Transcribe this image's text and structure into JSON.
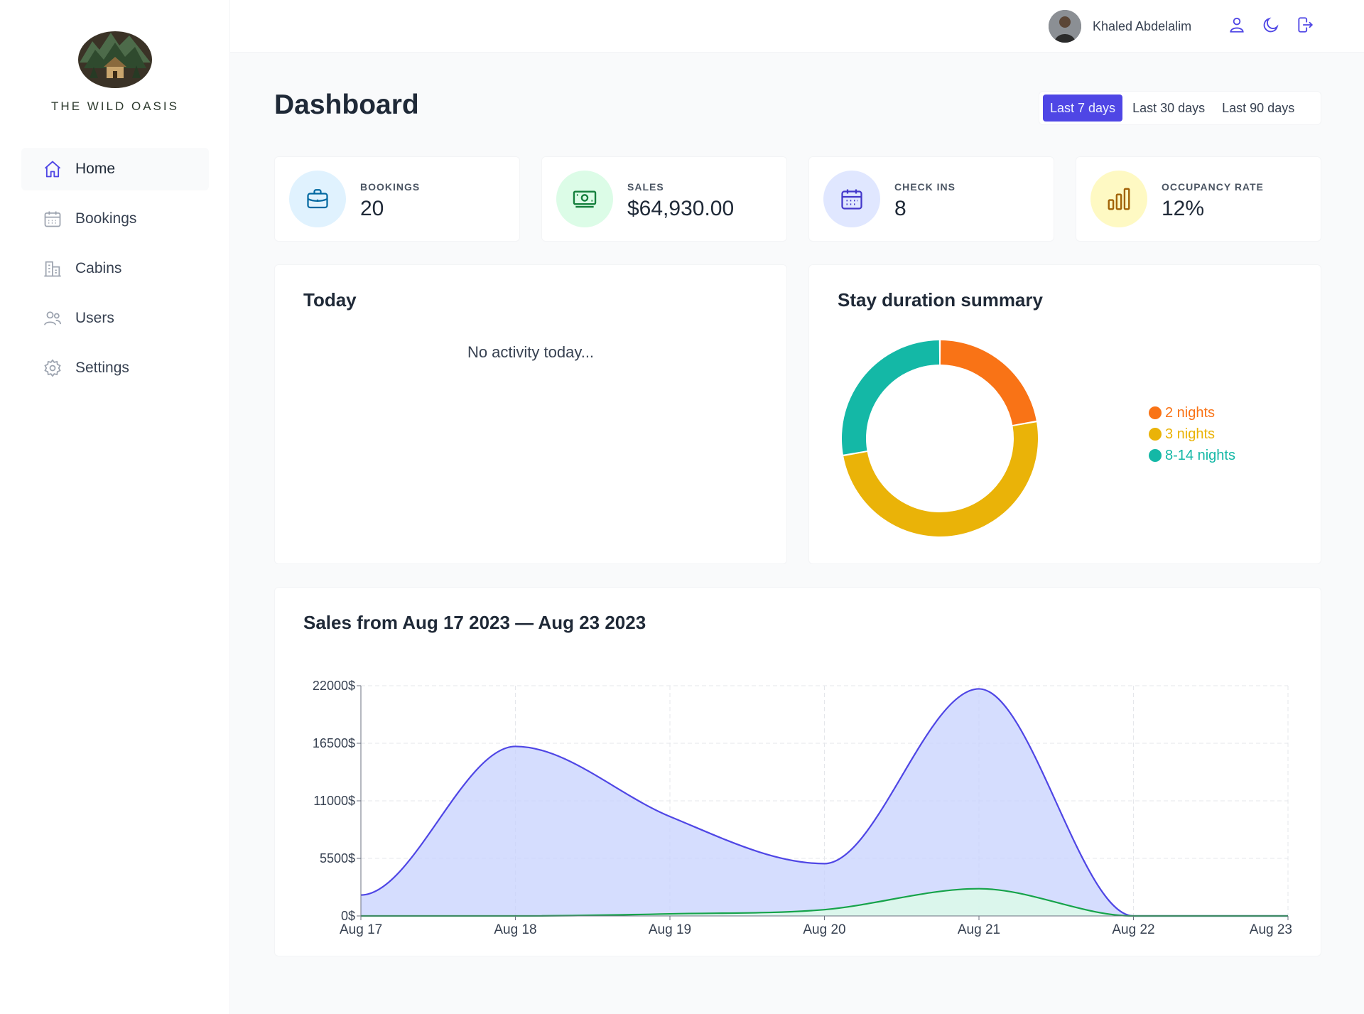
{
  "brand": {
    "name": "THE WILD OASIS"
  },
  "sidebar": {
    "items": [
      {
        "label": "Home",
        "icon": "home-icon",
        "active": true
      },
      {
        "label": "Bookings",
        "icon": "calendar-icon",
        "active": false
      },
      {
        "label": "Cabins",
        "icon": "building-icon",
        "active": false
      },
      {
        "label": "Users",
        "icon": "users-icon",
        "active": false
      },
      {
        "label": "Settings",
        "icon": "gear-icon",
        "active": false
      }
    ]
  },
  "header": {
    "user_name": "Khaled Abdelalim",
    "icons": [
      "user-icon",
      "moon-icon",
      "logout-icon"
    ]
  },
  "page": {
    "title": "Dashboard"
  },
  "filter": {
    "options": [
      "Last 7 days",
      "Last 30 days",
      "Last 90 days"
    ],
    "selected": "Last 7 days"
  },
  "stats": [
    {
      "label": "BOOKINGS",
      "value": "20",
      "icon": "briefcase-icon",
      "color": "#0369a1",
      "bg": "#e0f2fe"
    },
    {
      "label": "SALES",
      "value": "$64,930.00",
      "icon": "banknotes-icon",
      "color": "#15803d",
      "bg": "#dcfce7"
    },
    {
      "label": "CHECK INS",
      "value": "8",
      "icon": "calendar-days-icon",
      "color": "#4338ca",
      "bg": "#e0e7ff"
    },
    {
      "label": "OCCUPANCY RATE",
      "value": "12%",
      "icon": "chart-bar-icon",
      "color": "#a16207",
      "bg": "#fef9c3"
    }
  ],
  "today": {
    "title": "Today",
    "empty_text": "No activity today..."
  },
  "duration": {
    "title": "Stay duration summary",
    "colors": {
      "2 nights": "#f97316",
      "3 nights": "#eab308",
      "8-14 nights": "#14b8a6"
    }
  },
  "sales_chart": {
    "title": "Sales from Aug 17 2023 — Aug 23 2023"
  },
  "chart_data": [
    {
      "type": "pie",
      "labels": [
        "2 nights",
        "3 nights",
        "8-14 nights"
      ],
      "values": [
        4,
        9,
        5
      ],
      "legend_position": "right"
    },
    {
      "type": "area",
      "categories": [
        "Aug 17",
        "Aug 18",
        "Aug 19",
        "Aug 20",
        "Aug 21",
        "Aug 22",
        "Aug 23"
      ],
      "series": [
        {
          "values": [
            2000,
            16200,
            9500,
            5000,
            21700,
            0,
            0
          ],
          "color": "#4f46e5",
          "fill": "#c7d2fe"
        },
        {
          "values": [
            0,
            0,
            200,
            600,
            2600,
            0,
            0
          ],
          "color": "#16a34a",
          "fill": "#dcfce7"
        }
      ],
      "yticks": [
        "0$",
        "5500$",
        "11000$",
        "16500$",
        "22000$"
      ],
      "ylim": [
        0,
        22000
      ],
      "grid": true
    }
  ]
}
